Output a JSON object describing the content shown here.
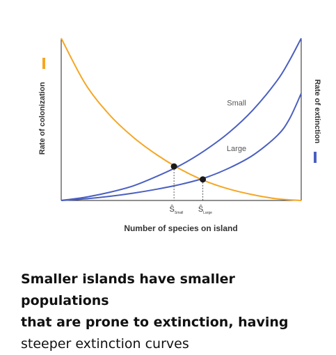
{
  "chart_data": {
    "type": "line",
    "xlabel": "Number of species on island",
    "ylabel_left": "Rate of colonization",
    "ylabel_right": "Rate of extinction",
    "x_ticks": [
      {
        "label": "Ŝ",
        "sub": "Small",
        "x": 0.47
      },
      {
        "label": "Ŝ",
        "sub": "Large",
        "x": 0.59
      }
    ],
    "series": [
      {
        "name": "",
        "role": "colonization",
        "color": "#F5A623",
        "x": [
          0,
          0.1,
          0.2,
          0.3,
          0.4,
          0.5,
          0.6,
          0.7,
          0.8,
          0.9,
          1.0
        ],
        "y": [
          1.0,
          0.72,
          0.53,
          0.39,
          0.28,
          0.19,
          0.12,
          0.07,
          0.035,
          0.01,
          0
        ]
      },
      {
        "name": "Small",
        "role": "extinction",
        "color": "#4A5FC1",
        "x": [
          0,
          0.1,
          0.2,
          0.3,
          0.4,
          0.5,
          0.6,
          0.7,
          0.8,
          0.9,
          0.95,
          1.0
        ],
        "y": [
          0,
          0.02,
          0.05,
          0.09,
          0.15,
          0.22,
          0.31,
          0.42,
          0.56,
          0.74,
          0.86,
          1.0
        ]
      },
      {
        "name": "Large",
        "role": "extinction",
        "color": "#4A5FC1",
        "x": [
          0,
          0.1,
          0.2,
          0.3,
          0.4,
          0.5,
          0.6,
          0.7,
          0.8,
          0.9,
          0.95,
          1.0
        ],
        "y": [
          0,
          0.01,
          0.025,
          0.045,
          0.07,
          0.1,
          0.14,
          0.2,
          0.28,
          0.4,
          0.5,
          0.66
        ]
      }
    ],
    "equilibria": [
      {
        "x": 0.47,
        "y": 0.21
      },
      {
        "x": 0.59,
        "y": 0.13
      }
    ],
    "xlim": [
      0,
      1
    ],
    "ylim": [
      0,
      1
    ],
    "grid": false
  },
  "caption": {
    "parts": [
      {
        "text": "Smaller islands have smaller populations",
        "bold": true
      },
      {
        "text": "that are prone to extinction, having",
        "bold": true
      },
      {
        "text": "steeper extinction curves",
        "bold": false
      }
    ]
  }
}
